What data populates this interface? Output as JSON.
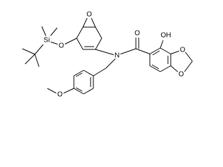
{
  "atoms": [
    "O",
    "O",
    "Si",
    "N",
    "O",
    "OH",
    "O",
    "O",
    "O"
  ]
}
